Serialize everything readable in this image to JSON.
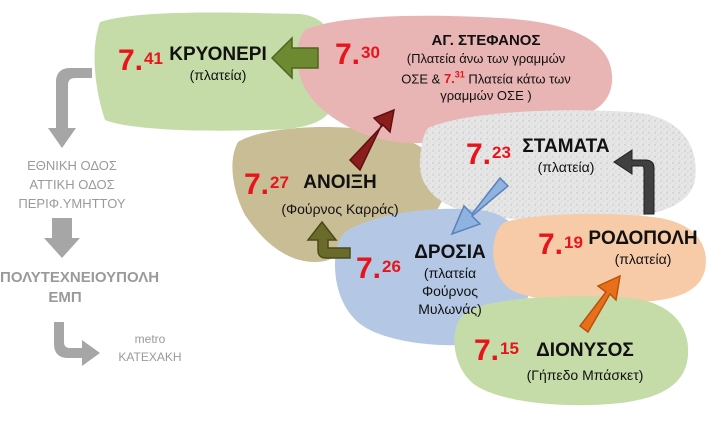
{
  "stops": {
    "kryoneri": {
      "hour": "7.",
      "minute": "41",
      "name": "ΚΡΥΟΝΕΡΙ",
      "place": "(πλατεία)",
      "color": "#c5dca8"
    },
    "agstefanos": {
      "hour": "7.",
      "minute": "30",
      "name": "ΑΓ. ΣΤΕΦΑΝΟΣ",
      "place_line1": "(Πλατεία άνω των γραμμών",
      "place_line2_pre": "ΟΣΕ & ",
      "alt_hour": "7.",
      "alt_minute": "31",
      "place_line2_post": " Πλατεία κάτω των",
      "place_line3": "γραμμών ΟΣΕ  )",
      "color": "#e8b4b4"
    },
    "stamata": {
      "hour": "7.",
      "minute": "23",
      "name": "ΣΤΑΜΑΤΑ",
      "place": "(πλατεία)",
      "color": "#e4e4e4"
    },
    "anoixi": {
      "hour": "7.",
      "minute": "27",
      "name": "ΑΝΟΙΞΗ",
      "place": "(Φούρνος Καρράς)",
      "color": "#c9bd96"
    },
    "drosia": {
      "hour": "7.",
      "minute": "26",
      "name": "ΔΡΟΣΙΑ",
      "place_line1": "(πλατεία",
      "place_line2": "Φούρνος",
      "place_line3": "Μυλωνάς)",
      "color": "#b4c8e6"
    },
    "rodopoli": {
      "hour": "7.",
      "minute": "19",
      "name": "ΡΟΔΟΠΟΛΗ",
      "place": "(πλατεία)",
      "color": "#f8cba8"
    },
    "dionysos": {
      "hour": "7.",
      "minute": "15",
      "name": "ΔΙΟΝΥΣΟΣ",
      "place": "(Γήπεδο Μπάσκετ)",
      "color": "#c5dca8"
    }
  },
  "route": {
    "highway_line1": "ΕΘΝΙΚΗ ΟΔΟΣ",
    "highway_line2": "ΑΤΤΙΚΗ ΟΔΟΣ",
    "highway_line3": "ΠΕΡΙΦ.ΥΜΗΤΤΟΥ",
    "destination_line1": "ΠΟΛΥΤΕΧΝΕΙΟΥΠΟΛΗ",
    "destination_line2": "ΕΜΠ",
    "metro_line1": "metro",
    "metro_line2": "ΚΑΤΕΧΑΚΗ"
  },
  "colors": {
    "text_red": "#e8141b",
    "route_gray": "#9a9a9a",
    "arrow_green": "#6e8a30",
    "arrow_darkred": "#8c1d1d",
    "arrow_blue": "#8fb3e0",
    "arrow_orange": "#e8701a",
    "arrow_olive": "#6a6a2a",
    "arrow_black": "#404040"
  }
}
